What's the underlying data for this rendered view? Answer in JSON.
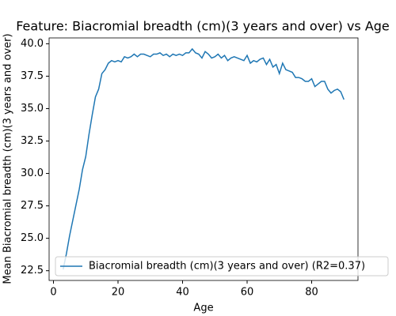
{
  "chart_data": {
    "type": "line",
    "title": "Feature: Biacromial breadth (cm)(3 years and over) vs Age",
    "x_label": "Age",
    "y_label": "Mean Biacromial breadth (cm)(3 years and over)",
    "x": [
      3,
      4,
      5,
      6,
      7,
      8,
      9,
      10,
      11,
      12,
      13,
      14,
      15,
      16,
      17,
      18,
      19,
      20,
      21,
      22,
      23,
      24,
      25,
      26,
      27,
      28,
      29,
      30,
      31,
      32,
      33,
      34,
      35,
      36,
      37,
      38,
      39,
      40,
      41,
      42,
      43,
      44,
      45,
      46,
      47,
      48,
      49,
      50,
      51,
      52,
      53,
      54,
      55,
      56,
      57,
      58,
      59,
      60,
      61,
      62,
      63,
      64,
      65,
      66,
      67,
      68,
      69,
      70,
      71,
      72,
      73,
      74,
      75,
      76,
      77,
      78,
      79,
      80,
      81,
      82,
      83,
      84,
      85,
      86,
      87,
      88,
      89,
      90
    ],
    "series": [
      {
        "name": "Biacromial breadth (cm)(3 years and over) (R2=0.37)",
        "color": "#1f77b4",
        "values": [
          22.6,
          23.8,
          25.2,
          26.4,
          27.6,
          28.8,
          30.3,
          31.3,
          33.0,
          34.5,
          35.9,
          36.5,
          37.7,
          38.0,
          38.5,
          38.7,
          38.6,
          38.7,
          38.6,
          39.0,
          38.9,
          39.0,
          39.2,
          39.0,
          39.2,
          39.2,
          39.1,
          39.0,
          39.2,
          39.2,
          39.3,
          39.1,
          39.2,
          39.0,
          39.2,
          39.1,
          39.2,
          39.1,
          39.3,
          39.3,
          39.6,
          39.3,
          39.2,
          38.9,
          39.4,
          39.2,
          38.9,
          39.0,
          39.2,
          38.9,
          39.1,
          38.7,
          38.9,
          39.0,
          38.9,
          38.8,
          38.7,
          39.1,
          38.5,
          38.7,
          38.6,
          38.8,
          38.9,
          38.4,
          38.8,
          38.2,
          38.4,
          37.7,
          38.5,
          38.0,
          37.9,
          37.8,
          37.4,
          37.4,
          37.3,
          37.1,
          37.1,
          37.3,
          36.7,
          36.9,
          37.1,
          37.1,
          36.5,
          36.2,
          36.4,
          36.5,
          36.3,
          35.7
        ]
      }
    ],
    "xlim": [
      -1.35,
      94.35
    ],
    "xticks": [
      0,
      20,
      40,
      60,
      80
    ],
    "ylim": [
      21.75,
      40.45
    ],
    "yticks": [
      22.5,
      {
        "value": 25,
        "label": "25.0"
      },
      27.5,
      {
        "value": 30,
        "label": "30.0"
      },
      32.5,
      {
        "value": 35,
        "label": "35.0"
      },
      37.5,
      {
        "value": 40,
        "label": "40.0"
      }
    ],
    "legend_loc": "lower right"
  }
}
